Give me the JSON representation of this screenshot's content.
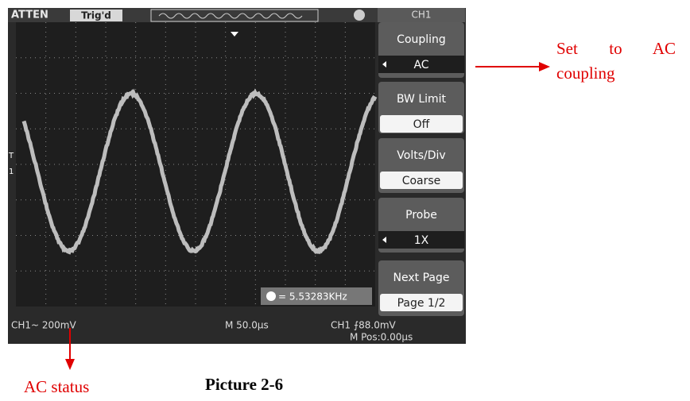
{
  "header": {
    "brand": "ATTEN",
    "trigger_status": "Trig'd",
    "menu_title": "CH1"
  },
  "markers": {
    "trigger": "T",
    "channel": "1"
  },
  "menu": [
    {
      "label": "Coupling",
      "value": "AC"
    },
    {
      "label": "BW Limit",
      "value": "Off"
    },
    {
      "label": "Volts/Div",
      "value": "Coarse"
    },
    {
      "label": "Probe",
      "value": "1X"
    },
    {
      "label": "Next Page",
      "value": "Page 1/2"
    }
  ],
  "frequency": "= 5.53283KHz",
  "status": {
    "channel": "CH1~ 200mV",
    "timebase": "M 50.0μs",
    "trigger": "CH1 ⨍88.0mV",
    "position": "M Pos:0.00μs"
  },
  "annotations": {
    "coupling": "Set to AC coupling",
    "status": "AC status"
  },
  "caption": "Picture 2-6"
}
